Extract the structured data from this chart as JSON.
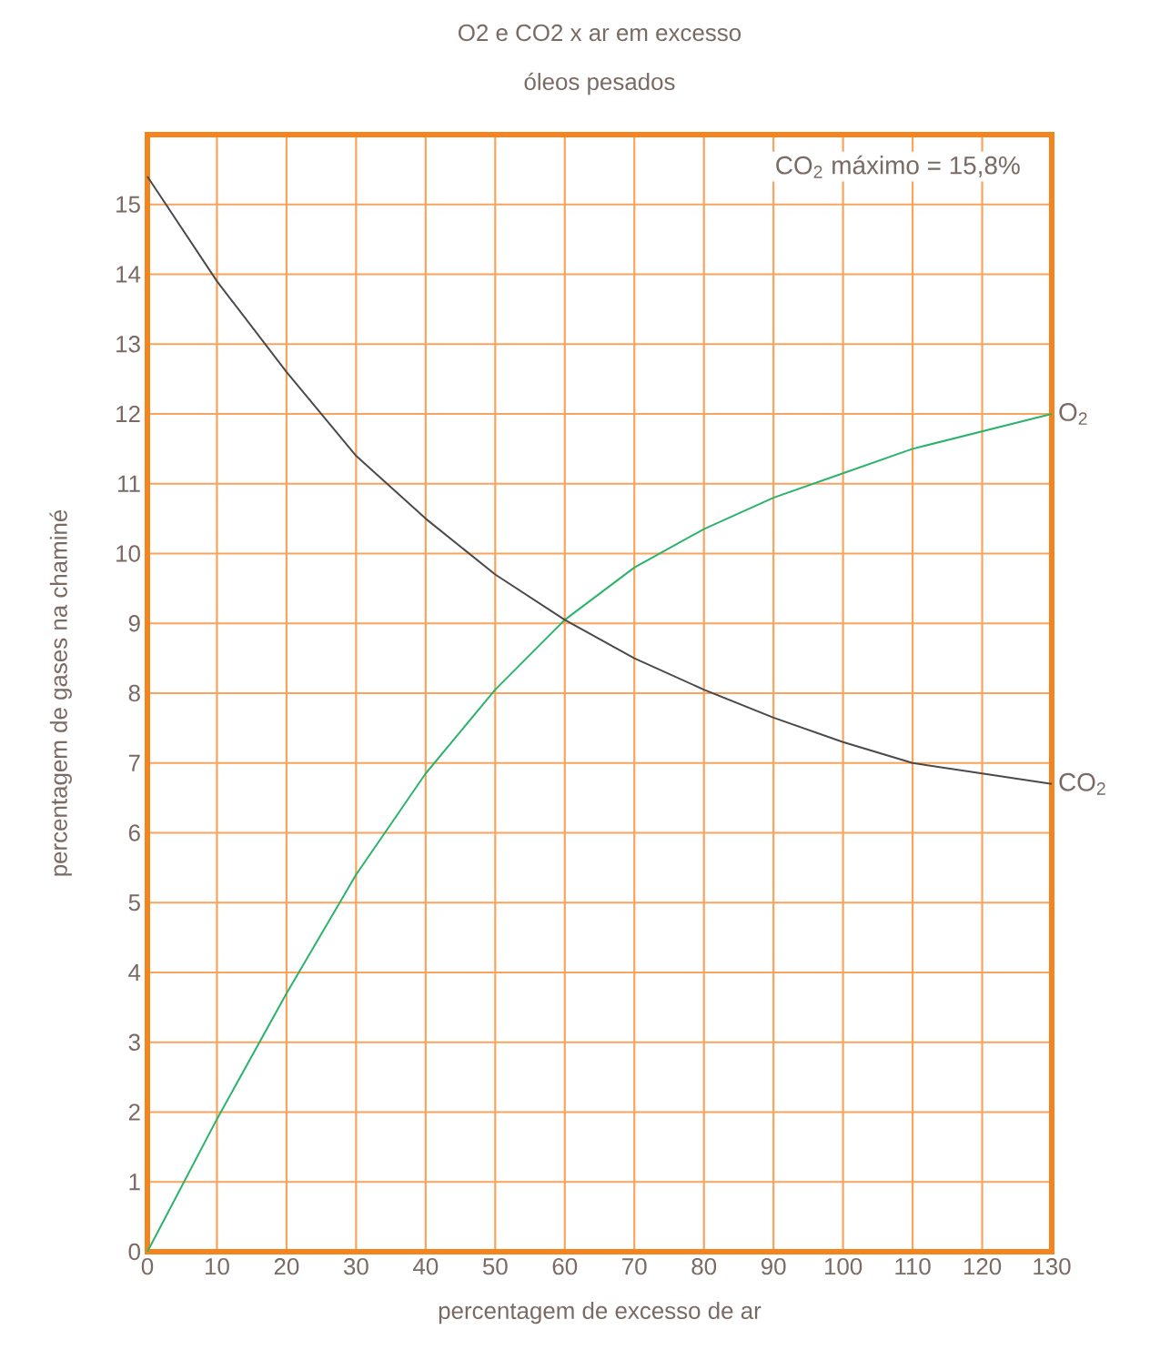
{
  "chart_data": {
    "type": "line",
    "title": "O2 e CO2 x ar em excesso",
    "subtitle": "óleos pesados",
    "xlabel": "percentagem de excesso de ar",
    "ylabel": "percentagem de gases na chaminé",
    "x": [
      0,
      10,
      20,
      30,
      40,
      50,
      60,
      70,
      80,
      90,
      100,
      110,
      120,
      130
    ],
    "series": [
      {
        "name": "O$_{2}$",
        "color": "#2bb36b",
        "values": [
          0,
          1.9,
          3.7,
          5.4,
          6.85,
          8.05,
          9.05,
          9.8,
          10.35,
          10.8,
          11.15,
          11.5,
          11.75,
          12.0
        ]
      },
      {
        "name": "CO$_{2}$",
        "color": "#4a4a4a",
        "values": [
          15.4,
          13.9,
          12.6,
          11.4,
          10.5,
          9.7,
          9.05,
          8.5,
          8.05,
          7.65,
          7.3,
          7.0,
          6.85,
          6.7
        ]
      }
    ],
    "annotations": [
      "CO$_{2}$ máximo = 15,8%"
    ],
    "xlim": [
      0,
      130
    ],
    "ylim": [
      0,
      16
    ],
    "xticks": [
      0,
      10,
      20,
      30,
      40,
      50,
      60,
      70,
      80,
      90,
      100,
      110,
      120,
      130
    ],
    "yticks": [
      0,
      1,
      2,
      3,
      4,
      5,
      6,
      7,
      8,
      9,
      10,
      11,
      12,
      13,
      14,
      15
    ],
    "grid": true,
    "legend": false,
    "marker": "none",
    "line_style": "solid"
  }
}
